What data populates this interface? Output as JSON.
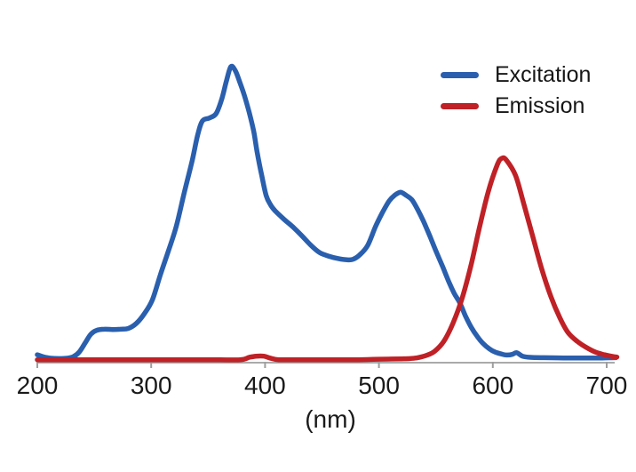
{
  "chart_data": {
    "type": "line",
    "title": "",
    "xlabel": "(nm)",
    "ylabel": "",
    "xlim": [
      200,
      700
    ],
    "ylim": [
      0,
      1.05
    ],
    "y_axis_shown": false,
    "grid": false,
    "legend_position": "top-right",
    "axis_color": "#9e9e9e",
    "text_color": "#1a1a1a",
    "x_ticks": [
      200,
      300,
      400,
      500,
      600,
      700
    ],
    "x_tick_labels": [
      "200",
      "300",
      "400",
      "500",
      "600",
      "700"
    ],
    "series": [
      {
        "name": "Excitation",
        "color": "#2a5fae",
        "points": [
          [
            200,
            0.018
          ],
          [
            206,
            0.01
          ],
          [
            212,
            0.006
          ],
          [
            219,
            0.005
          ],
          [
            226,
            0.006
          ],
          [
            232,
            0.012
          ],
          [
            237,
            0.028
          ],
          [
            242,
            0.058
          ],
          [
            247,
            0.088
          ],
          [
            252,
            0.101
          ],
          [
            259,
            0.105
          ],
          [
            266,
            0.104
          ],
          [
            273,
            0.105
          ],
          [
            280,
            0.108
          ],
          [
            287,
            0.125
          ],
          [
            294,
            0.158
          ],
          [
            301,
            0.205
          ],
          [
            308,
            0.29
          ],
          [
            315,
            0.37
          ],
          [
            322,
            0.455
          ],
          [
            329,
            0.57
          ],
          [
            336,
            0.68
          ],
          [
            341,
            0.77
          ],
          [
            345,
            0.815
          ],
          [
            351,
            0.825
          ],
          [
            357,
            0.84
          ],
          [
            362,
            0.89
          ],
          [
            366,
            0.95
          ],
          [
            370,
            1.0
          ],
          [
            374,
            0.985
          ],
          [
            378,
            0.945
          ],
          [
            382,
            0.9
          ],
          [
            386,
            0.845
          ],
          [
            390,
            0.78
          ],
          [
            393,
            0.71
          ],
          [
            397,
            0.63
          ],
          [
            401,
            0.56
          ],
          [
            405,
            0.528
          ],
          [
            409,
            0.508
          ],
          [
            416,
            0.482
          ],
          [
            424,
            0.455
          ],
          [
            432,
            0.425
          ],
          [
            440,
            0.392
          ],
          [
            448,
            0.366
          ],
          [
            456,
            0.354
          ],
          [
            464,
            0.346
          ],
          [
            471,
            0.342
          ],
          [
            477,
            0.343
          ],
          [
            483,
            0.358
          ],
          [
            490,
            0.39
          ],
          [
            497,
            0.455
          ],
          [
            503,
            0.502
          ],
          [
            509,
            0.542
          ],
          [
            514,
            0.562
          ],
          [
            519,
            0.572
          ],
          [
            524,
            0.561
          ],
          [
            529,
            0.546
          ],
          [
            534,
            0.513
          ],
          [
            539,
            0.474
          ],
          [
            545,
            0.42
          ],
          [
            550,
            0.372
          ],
          [
            556,
            0.318
          ],
          [
            561,
            0.27
          ],
          [
            566,
            0.228
          ],
          [
            571,
            0.195
          ],
          [
            576,
            0.15
          ],
          [
            581,
            0.112
          ],
          [
            586,
            0.082
          ],
          [
            591,
            0.058
          ],
          [
            597,
            0.038
          ],
          [
            602,
            0.027
          ],
          [
            607,
            0.021
          ],
          [
            612,
            0.017
          ],
          [
            617,
            0.019
          ],
          [
            621,
            0.025
          ],
          [
            626,
            0.013
          ],
          [
            633,
            0.009
          ],
          [
            645,
            0.008
          ],
          [
            662,
            0.007
          ],
          [
            680,
            0.007
          ],
          [
            696,
            0.007
          ],
          [
            708,
            0.008
          ]
        ]
      },
      {
        "name": "Emission",
        "color": "#bf2126",
        "points": [
          [
            200,
            0.001
          ],
          [
            230,
            0.001
          ],
          [
            260,
            0.001
          ],
          [
            290,
            0.001
          ],
          [
            320,
            0.001
          ],
          [
            350,
            0.001
          ],
          [
            378,
            0.001
          ],
          [
            386,
            0.009
          ],
          [
            392,
            0.013
          ],
          [
            399,
            0.013
          ],
          [
            405,
            0.006
          ],
          [
            412,
            0.001
          ],
          [
            430,
            0.001
          ],
          [
            450,
            0.001
          ],
          [
            468,
            0.001
          ],
          [
            482,
            0.001
          ],
          [
            495,
            0.002
          ],
          [
            508,
            0.003
          ],
          [
            520,
            0.004
          ],
          [
            527,
            0.005
          ],
          [
            534,
            0.008
          ],
          [
            542,
            0.016
          ],
          [
            549,
            0.03
          ],
          [
            557,
            0.064
          ],
          [
            565,
            0.125
          ],
          [
            573,
            0.21
          ],
          [
            581,
            0.325
          ],
          [
            588,
            0.447
          ],
          [
            596,
            0.574
          ],
          [
            604,
            0.666
          ],
          [
            608,
            0.688
          ],
          [
            612,
            0.681
          ],
          [
            620,
            0.629
          ],
          [
            627,
            0.535
          ],
          [
            635,
            0.422
          ],
          [
            643,
            0.31
          ],
          [
            651,
            0.216
          ],
          [
            659,
            0.143
          ],
          [
            666,
            0.094
          ],
          [
            674,
            0.064
          ],
          [
            682,
            0.043
          ],
          [
            690,
            0.027
          ],
          [
            698,
            0.018
          ],
          [
            705,
            0.012
          ],
          [
            709,
            0.01
          ]
        ]
      }
    ]
  }
}
